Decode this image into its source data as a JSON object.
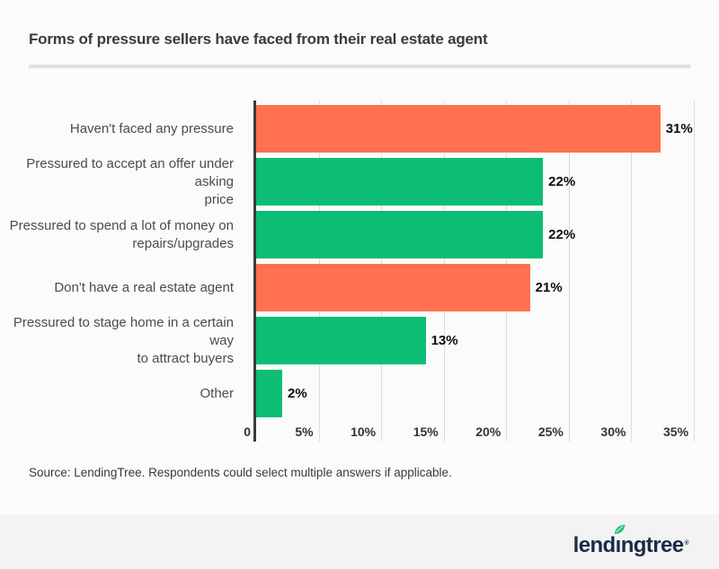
{
  "page": {
    "title": "Forms of pressure sellers have faced from their real estate agent",
    "source_note": "Source: LendingTree. Respondents could select multiple answers if applicable.",
    "footer": {
      "brand": "lendingtree",
      "brand_prefix": "lend",
      "brand_i": "ı",
      "brand_suffix": "ngtree",
      "registered": "®",
      "brand_color": "#1a2b49",
      "leaf_color": "#1fc36f",
      "background": "#f3f3f3"
    }
  },
  "chart_data": {
    "type": "bar",
    "orientation": "horizontal",
    "title": "Forms of pressure sellers have faced from their real estate agent",
    "xlabel": "",
    "ylabel": "",
    "grid": true,
    "xlim": [
      0,
      35.5
    ],
    "categories": [
      "Haven't faced any pressure",
      "Pressured to accept an offer under asking\nprice",
      "Pressured to spend a lot of money on\nrepairs/upgrades",
      "Don't have a real estate agent",
      "Pressured to stage home in a certain way\nto attract buyers",
      "Other"
    ],
    "values": [
      31,
      22,
      22,
      21,
      13,
      2
    ],
    "value_labels": [
      "31%",
      "22%",
      "22%",
      "21%",
      "13%",
      "2%"
    ],
    "bar_colors": [
      "#FF714F",
      "#0BBE73",
      "#0BBE73",
      "#FF714F",
      "#0BBE73",
      "#0BBE73"
    ],
    "ticks": [
      {
        "value": 0,
        "label": "0"
      },
      {
        "value": 5,
        "label": "5%"
      },
      {
        "value": 10,
        "label": "10%"
      },
      {
        "value": 15,
        "label": "15%"
      },
      {
        "value": 20,
        "label": "20%"
      },
      {
        "value": 25,
        "label": "25%"
      },
      {
        "value": 30,
        "label": "30%"
      },
      {
        "value": 35,
        "label": "35%"
      }
    ],
    "colors": {
      "orange": "#FF714F",
      "green": "#0BBE73",
      "axis_line": "#3a3a3a",
      "gridline": "#dcdcdc",
      "value_label": "#0d0d0d",
      "category_label": "#4c4c4c"
    }
  }
}
